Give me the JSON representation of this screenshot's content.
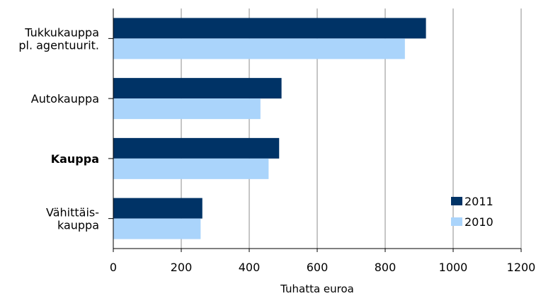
{
  "chart_data": {
    "type": "bar",
    "orientation": "horizontal",
    "categories": [
      {
        "lines": [
          "Tukkukauppa",
          "pl. agentuurit."
        ],
        "bold": false
      },
      {
        "lines": [
          "Autokauppa"
        ],
        "bold": false
      },
      {
        "lines": [
          "Kauppa"
        ],
        "bold": true
      },
      {
        "lines": [
          "Vähittäis-",
          "kauppa"
        ],
        "bold": false
      }
    ],
    "series": [
      {
        "name": "2011",
        "color": "#003366",
        "values": [
          920,
          495,
          488,
          262
        ]
      },
      {
        "name": "2010",
        "color": "#aad4fb",
        "values": [
          858,
          433,
          457,
          257
        ]
      }
    ],
    "xlabel": "Tuhatta euroa",
    "ylabel": "",
    "title": "",
    "xlim": [
      0,
      1200
    ],
    "xticks": [
      0,
      200,
      400,
      600,
      800,
      1000,
      1200
    ],
    "grid": "vertical",
    "legend_position": "bottom-right"
  }
}
